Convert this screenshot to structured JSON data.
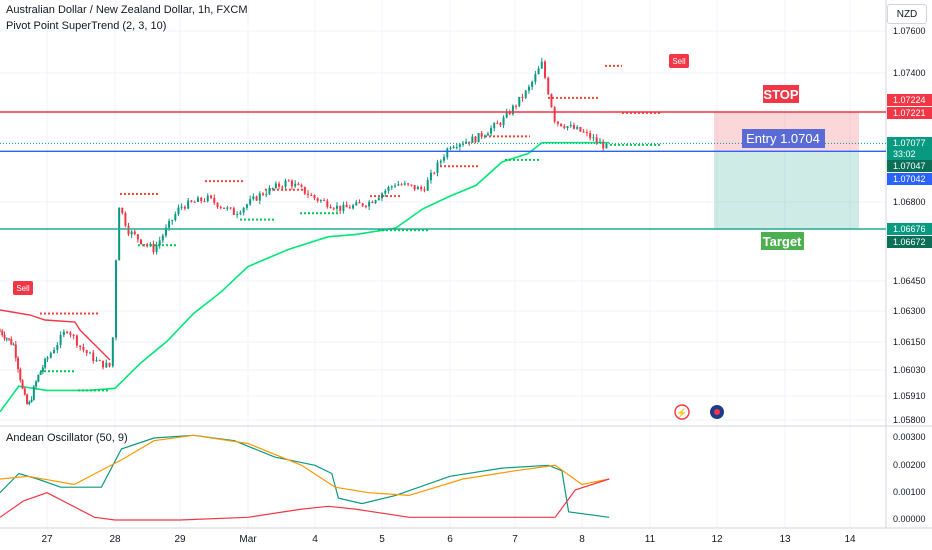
{
  "header": {
    "title": "Australian Dollar / New Zealand Dollar, 1h, FXCM",
    "indicator": "Pivot Point SuperTrend (2, 3, 10)",
    "currency": "NZD"
  },
  "oscillator": {
    "title": "Andean Oscillator (50, 9)"
  },
  "annotations": {
    "stop": "STOP",
    "entry": "Entry 1.0704",
    "target": "Target",
    "sell1": "Sell",
    "sell2": "Sell"
  },
  "price_tags": {
    "stop_a": "1.07224",
    "stop_b": "1.07221",
    "last": "1.07077",
    "countdown": "33:02",
    "entry_a": "1.07047",
    "entry_b": "1.07042",
    "target_a": "1.06676",
    "target_b": "1.06672"
  },
  "colors": {
    "up": "#089981",
    "down": "#f23645",
    "stop": "#f23645",
    "entry": "#2962ff",
    "target": "#22ab94",
    "supertrend_up": "#00e676",
    "pivot_up": "#00c853",
    "pivot_dn": "#f44336",
    "osc_bull": "#089981",
    "osc_bear": "#f23645",
    "osc_signal": "#ff9800"
  },
  "chart_data": [
    {
      "type": "candlestick",
      "series_name": "AUDNZD",
      "x_tick_labels": [
        "27",
        "28",
        "29",
        "Mar",
        "4",
        "5",
        "6",
        "7",
        "8",
        "11",
        "12",
        "13",
        "14"
      ],
      "y_tick_labels": [
        "1.07600",
        "1.07400",
        "1.06800",
        "1.06450",
        "1.06300",
        "1.06150",
        "1.06030",
        "1.05910",
        "1.05800"
      ],
      "ylim": [
        1.0578,
        1.0765
      ],
      "key_levels": {
        "stop": 1.07224,
        "entry": 1.0704,
        "target": 1.06676,
        "last_price": 1.07077
      },
      "price_path": [
        {
          "x": 0,
          "y": 1.062
        },
        {
          "x": 0.3,
          "y": 1.0613
        },
        {
          "x": 0.5,
          "y": 1.059
        },
        {
          "x": 0.6,
          "y": 1.0584
        },
        {
          "x": 0.8,
          "y": 1.0598
        },
        {
          "x": 1.0,
          "y": 1.0607
        },
        {
          "x": 1.3,
          "y": 1.0621
        },
        {
          "x": 1.5,
          "y": 1.0612
        },
        {
          "x": 1.75,
          "y": 1.0605
        },
        {
          "x": 1.95,
          "y": 1.0603
        },
        {
          "x": 2.05,
          "y": 1.068
        },
        {
          "x": 2.2,
          "y": 1.0667
        },
        {
          "x": 2.4,
          "y": 1.0662
        },
        {
          "x": 2.6,
          "y": 1.0658
        },
        {
          "x": 3.0,
          "y": 1.0678
        },
        {
          "x": 3.4,
          "y": 1.0682
        },
        {
          "x": 3.8,
          "y": 1.0675
        },
        {
          "x": 4.2,
          "y": 1.0684
        },
        {
          "x": 4.6,
          "y": 1.069
        },
        {
          "x": 5.0,
          "y": 1.0682
        },
        {
          "x": 5.4,
          "y": 1.0677
        },
        {
          "x": 5.8,
          "y": 1.068
        },
        {
          "x": 6.2,
          "y": 1.0689
        },
        {
          "x": 6.6,
          "y": 1.0686
        },
        {
          "x": 7.0,
          "y": 1.0707
        },
        {
          "x": 7.4,
          "y": 1.071
        },
        {
          "x": 7.8,
          "y": 1.0718
        },
        {
          "x": 8.2,
          "y": 1.0733
        },
        {
          "x": 8.4,
          "y": 1.0745
        },
        {
          "x": 8.6,
          "y": 1.0718
        },
        {
          "x": 9.0,
          "y": 1.0713
        },
        {
          "x": 9.4,
          "y": 1.0705
        }
      ],
      "supertrend": [
        {
          "x": 0,
          "y": 1.0582
        },
        {
          "x": 0.4,
          "y": 1.0594
        },
        {
          "x": 1.0,
          "y": 1.0592
        },
        {
          "x": 1.6,
          "y": 1.0592
        },
        {
          "x": 2.0,
          "y": 1.0593
        },
        {
          "x": 2.4,
          "y": 1.0605
        },
        {
          "x": 2.8,
          "y": 1.0615
        },
        {
          "x": 3.2,
          "y": 1.0628
        },
        {
          "x": 3.6,
          "y": 1.0638
        },
        {
          "x": 4.0,
          "y": 1.065
        },
        {
          "x": 4.6,
          "y": 1.0658
        },
        {
          "x": 5.2,
          "y": 1.0664
        },
        {
          "x": 5.6,
          "y": 1.0665
        },
        {
          "x": 6.2,
          "y": 1.0668
        },
        {
          "x": 6.6,
          "y": 1.0677
        },
        {
          "x": 7.0,
          "y": 1.0683
        },
        {
          "x": 7.4,
          "y": 1.0688
        },
        {
          "x": 7.8,
          "y": 1.0699
        },
        {
          "x": 8.2,
          "y": 1.0703
        },
        {
          "x": 8.4,
          "y": 1.0708
        },
        {
          "x": 9.0,
          "y": 1.0708
        },
        {
          "x": 9.4,
          "y": 1.0708
        }
      ]
    },
    {
      "type": "line",
      "title": "Andean Oscillator (50, 9)",
      "y_tick_labels": [
        "0.00300",
        "0.00200",
        "0.00100",
        "0.00000"
      ],
      "ylim": [
        0,
        0.0031
      ],
      "series": [
        {
          "color": "#089981",
          "points": [
            {
              "x": 0,
              "y": 0.001
            },
            {
              "x": 0.4,
              "y": 0.0017
            },
            {
              "x": 0.8,
              "y": 0.0015
            },
            {
              "x": 1.2,
              "y": 0.0012
            },
            {
              "x": 1.8,
              "y": 0.0012
            },
            {
              "x": 2.1,
              "y": 0.0026
            },
            {
              "x": 2.6,
              "y": 0.003
            },
            {
              "x": 3.2,
              "y": 0.0031
            },
            {
              "x": 3.8,
              "y": 0.0029
            },
            {
              "x": 4.4,
              "y": 0.0023
            },
            {
              "x": 5.0,
              "y": 0.002
            },
            {
              "x": 5.25,
              "y": 0.0017
            },
            {
              "x": 5.35,
              "y": 0.0008
            },
            {
              "x": 5.7,
              "y": 0.0006
            },
            {
              "x": 6.2,
              "y": 0.0009
            },
            {
              "x": 7.0,
              "y": 0.0016
            },
            {
              "x": 7.8,
              "y": 0.0019
            },
            {
              "x": 8.5,
              "y": 0.002
            },
            {
              "x": 8.7,
              "y": 0.0018
            },
            {
              "x": 8.8,
              "y": 0.0003
            },
            {
              "x": 9.4,
              "y": 0.0001
            }
          ]
        },
        {
          "color": "#ff9800",
          "points": [
            {
              "x": 0,
              "y": 0.0015
            },
            {
              "x": 0.6,
              "y": 0.0016
            },
            {
              "x": 1.4,
              "y": 0.0013
            },
            {
              "x": 2.1,
              "y": 0.0022
            },
            {
              "x": 2.6,
              "y": 0.0029
            },
            {
              "x": 3.2,
              "y": 0.0031
            },
            {
              "x": 4.0,
              "y": 0.0028
            },
            {
              "x": 4.8,
              "y": 0.002
            },
            {
              "x": 5.3,
              "y": 0.0012
            },
            {
              "x": 5.8,
              "y": 0.001
            },
            {
              "x": 6.4,
              "y": 0.0009
            },
            {
              "x": 7.2,
              "y": 0.0015
            },
            {
              "x": 8.0,
              "y": 0.0018
            },
            {
              "x": 8.6,
              "y": 0.002
            },
            {
              "x": 9.0,
              "y": 0.0013
            },
            {
              "x": 9.4,
              "y": 0.0015
            }
          ]
        },
        {
          "color": "#f23645",
          "points": [
            {
              "x": 0,
              "y": 0.0001
            },
            {
              "x": 0.5,
              "y": 0.0007
            },
            {
              "x": 1.0,
              "y": 0.001
            },
            {
              "x": 1.7,
              "y": 0.0001
            },
            {
              "x": 2.0,
              "y": 0.0
            },
            {
              "x": 3.0,
              "y": 0.0
            },
            {
              "x": 4.0,
              "y": 0.0001
            },
            {
              "x": 4.8,
              "y": 0.0004
            },
            {
              "x": 5.2,
              "y": 0.0005
            },
            {
              "x": 5.6,
              "y": 0.0004
            },
            {
              "x": 6.4,
              "y": 0.0001
            },
            {
              "x": 7.5,
              "y": 0.0001
            },
            {
              "x": 8.6,
              "y": 0.0001
            },
            {
              "x": 8.9,
              "y": 0.0011
            },
            {
              "x": 9.4,
              "y": 0.0015
            }
          ]
        }
      ]
    }
  ]
}
